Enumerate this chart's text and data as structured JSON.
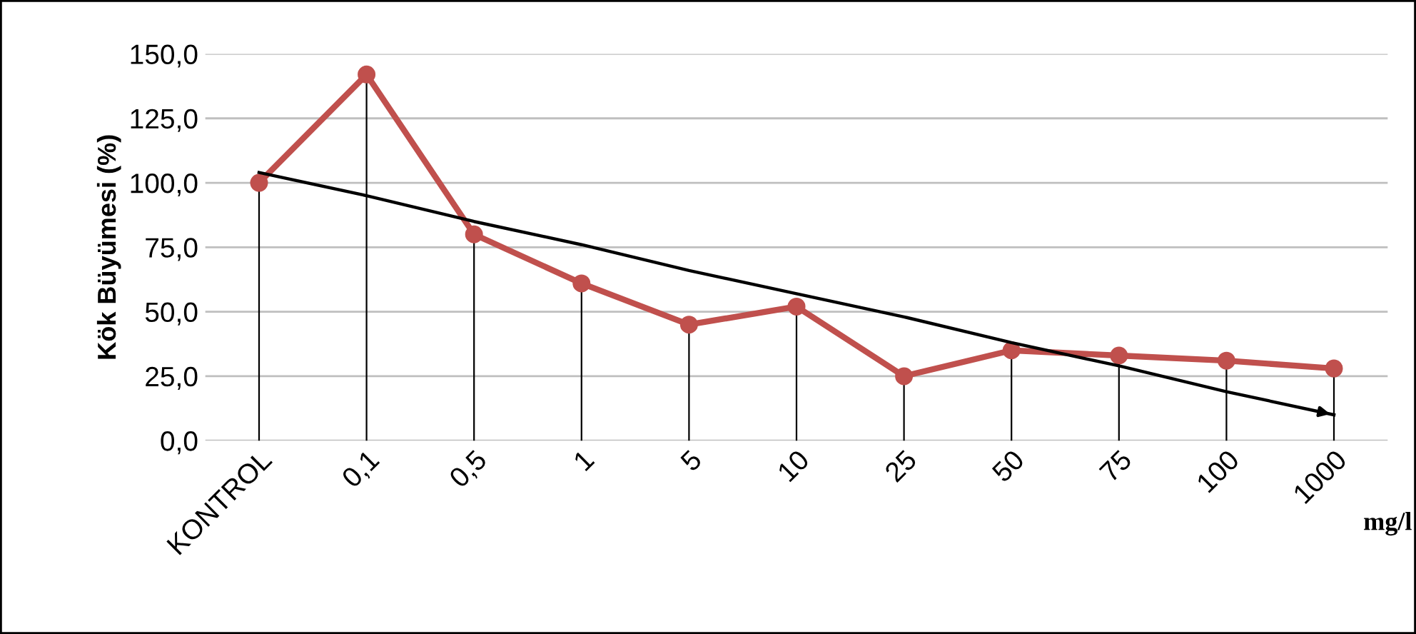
{
  "chart_data": {
    "type": "line",
    "ylabel": "Kök Büyümesi (%)",
    "categories": [
      "KONTROL",
      "0,1",
      "0,5",
      "1",
      "5",
      "10",
      "25",
      "50",
      "75",
      "100",
      "1000"
    ],
    "series": [
      {
        "color": "#c0504d",
        "marker": "circle",
        "values": [
          100,
          142,
          80,
          61,
          45,
          52,
          25,
          35,
          33,
          31,
          28
        ],
        "errors": [
          [
            0,
            100
          ],
          [
            0,
            142
          ],
          [
            0,
            80
          ],
          [
            0,
            61
          ],
          [
            0,
            45
          ],
          [
            0,
            52
          ],
          [
            0,
            25
          ],
          [
            0,
            35
          ],
          [
            0,
            33
          ],
          [
            0,
            31
          ],
          [
            0,
            28
          ]
        ]
      },
      {
        "type": "line",
        "color": "#000000",
        "marker": "none",
        "values": [
          104,
          95,
          85,
          76,
          66,
          57,
          48,
          38,
          29,
          19,
          10
        ]
      }
    ],
    "ylim": [
      0,
      150
    ],
    "yticks": [
      {
        "value": 0,
        "label": "0,0"
      },
      {
        "value": 25,
        "label": "25,0"
      },
      {
        "value": 50,
        "label": "50,0"
      },
      {
        "value": 75,
        "label": "75,0"
      },
      {
        "value": 100,
        "label": "100,0"
      },
      {
        "value": 125,
        "label": "125,0"
      },
      {
        "value": 150,
        "label": "150,0"
      }
    ],
    "grid": "y",
    "legend": false,
    "annotations": [
      "mg/l"
    ]
  }
}
